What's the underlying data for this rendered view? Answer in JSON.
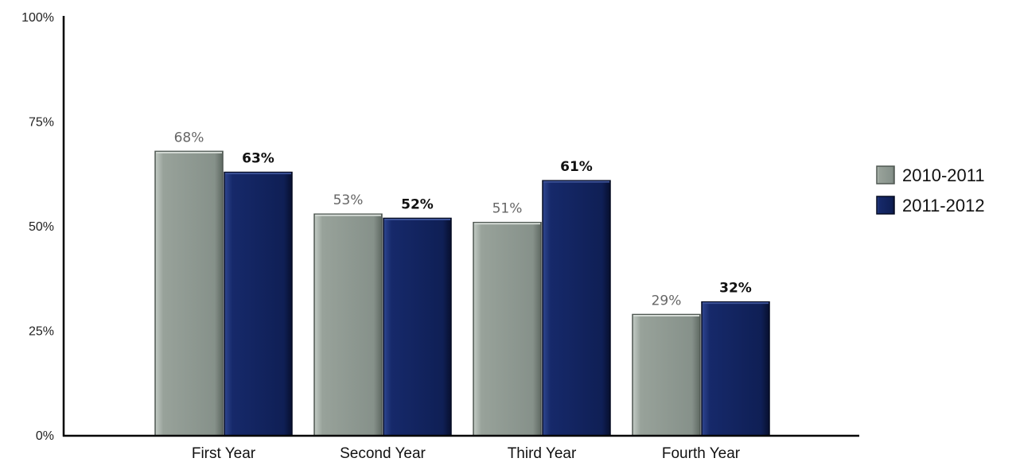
{
  "chart_data": {
    "type": "bar",
    "categories": [
      "First Year",
      "Second Year",
      "Third Year",
      "Fourth Year"
    ],
    "series": [
      {
        "name": "2010-2011",
        "values": [
          68,
          53,
          51,
          29
        ],
        "labels": [
          "68%",
          "53%",
          "51%",
          "29%"
        ],
        "color": "#8a948c"
      },
      {
        "name": "2011-2012",
        "values": [
          63,
          52,
          61,
          32
        ],
        "labels": [
          "63%",
          "52%",
          "61%",
          "32%"
        ],
        "color": "#14255c"
      }
    ],
    "y_ticks": [
      {
        "value": 0,
        "label": "0%"
      },
      {
        "value": 25,
        "label": "25%"
      },
      {
        "value": 50,
        "label": "50%"
      },
      {
        "value": 75,
        "label": "75%"
      },
      {
        "value": 100,
        "label": "100%"
      }
    ],
    "ylim": [
      0,
      100
    ],
    "grid": false,
    "legend_position": "right"
  }
}
